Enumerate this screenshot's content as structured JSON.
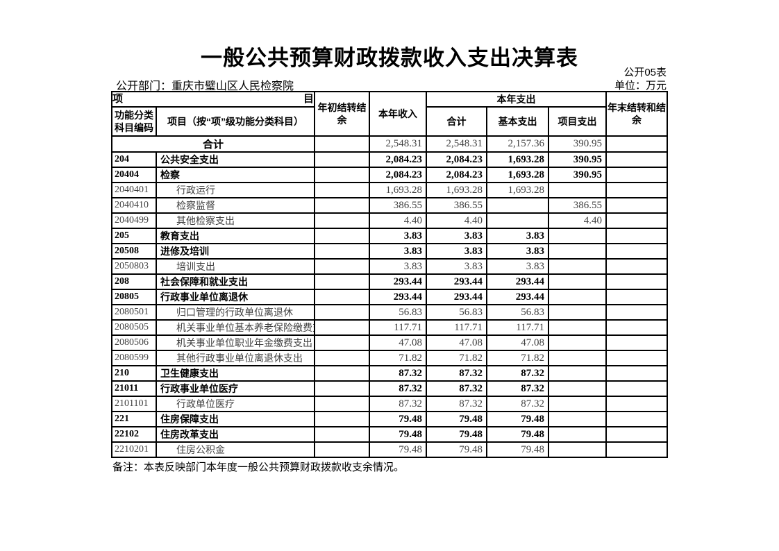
{
  "page": {
    "title": "一般公共预算财政拨款收入支出决算表",
    "table_code": "公开05表",
    "department": "公开部门：重庆市璧山区人民检察院",
    "unit": "单位：万元",
    "note": "备注：本表反映部门本年度一般公共预算财政拨款收支余情况。"
  },
  "table": {
    "header": {
      "item_left": "项",
      "item_right": "目",
      "code_col": "功能分类科目编码",
      "project_col": "项目（按“项”级功能分类科目）",
      "opening_balance": "年初结转结余",
      "income": "本年收入",
      "expenditure_group": "本年支出",
      "exp_total": "合计",
      "exp_basic": "基本支出",
      "exp_project": "项目支出",
      "closing_balance": "年末结转和结余"
    },
    "rows": [
      {
        "level": "total",
        "code": "",
        "name": "合计",
        "opening": "",
        "income": "2,548.31",
        "exp_total": "2,548.31",
        "exp_basic": "2,157.36",
        "exp_project": "390.95",
        "closing": ""
      },
      {
        "level": "major",
        "code": "204",
        "name": "公共安全支出",
        "opening": "",
        "income": "2,084.23",
        "exp_total": "2,084.23",
        "exp_basic": "1,693.28",
        "exp_project": "390.95",
        "closing": ""
      },
      {
        "level": "major",
        "code": "20404",
        "name": "检察",
        "opening": "",
        "income": "2,084.23",
        "exp_total": "2,084.23",
        "exp_basic": "1,693.28",
        "exp_project": "390.95",
        "closing": ""
      },
      {
        "level": "detail",
        "code": "2040401",
        "name": "行政运行",
        "opening": "",
        "income": "1,693.28",
        "exp_total": "1,693.28",
        "exp_basic": "1,693.28",
        "exp_project": "",
        "closing": ""
      },
      {
        "level": "detail",
        "code": "2040410",
        "name": "检察监督",
        "opening": "",
        "income": "386.55",
        "exp_total": "386.55",
        "exp_basic": "",
        "exp_project": "386.55",
        "closing": ""
      },
      {
        "level": "detail",
        "code": "2040499",
        "name": "其他检察支出",
        "opening": "",
        "income": "4.40",
        "exp_total": "4.40",
        "exp_basic": "",
        "exp_project": "4.40",
        "closing": ""
      },
      {
        "level": "major",
        "code": "205",
        "name": "教育支出",
        "opening": "",
        "income": "3.83",
        "exp_total": "3.83",
        "exp_basic": "3.83",
        "exp_project": "",
        "closing": ""
      },
      {
        "level": "major",
        "code": "20508",
        "name": "进修及培训",
        "opening": "",
        "income": "3.83",
        "exp_total": "3.83",
        "exp_basic": "3.83",
        "exp_project": "",
        "closing": ""
      },
      {
        "level": "detail",
        "code": "2050803",
        "name": "培训支出",
        "opening": "",
        "income": "3.83",
        "exp_total": "3.83",
        "exp_basic": "3.83",
        "exp_project": "",
        "closing": ""
      },
      {
        "level": "major",
        "code": "208",
        "name": "社会保障和就业支出",
        "opening": "",
        "income": "293.44",
        "exp_total": "293.44",
        "exp_basic": "293.44",
        "exp_project": "",
        "closing": ""
      },
      {
        "level": "major",
        "code": "20805",
        "name": "行政事业单位离退休",
        "opening": "",
        "income": "293.44",
        "exp_total": "293.44",
        "exp_basic": "293.44",
        "exp_project": "",
        "closing": ""
      },
      {
        "level": "detail",
        "code": "2080501",
        "name": "归口管理的行政单位离退休",
        "opening": "",
        "income": "56.83",
        "exp_total": "56.83",
        "exp_basic": "56.83",
        "exp_project": "",
        "closing": ""
      },
      {
        "level": "detail",
        "code": "2080505",
        "name": "机关事业单位基本养老保险缴费支出",
        "opening": "",
        "income": "117.71",
        "exp_total": "117.71",
        "exp_basic": "117.71",
        "exp_project": "",
        "closing": ""
      },
      {
        "level": "detail",
        "code": "2080506",
        "name": "机关事业单位职业年金缴费支出",
        "opening": "",
        "income": "47.08",
        "exp_total": "47.08",
        "exp_basic": "47.08",
        "exp_project": "",
        "closing": ""
      },
      {
        "level": "detail",
        "code": "2080599",
        "name": "其他行政事业单位离退休支出",
        "opening": "",
        "income": "71.82",
        "exp_total": "71.82",
        "exp_basic": "71.82",
        "exp_project": "",
        "closing": ""
      },
      {
        "level": "major",
        "code": "210",
        "name": "卫生健康支出",
        "opening": "",
        "income": "87.32",
        "exp_total": "87.32",
        "exp_basic": "87.32",
        "exp_project": "",
        "closing": ""
      },
      {
        "level": "major",
        "code": "21011",
        "name": "行政事业单位医疗",
        "opening": "",
        "income": "87.32",
        "exp_total": "87.32",
        "exp_basic": "87.32",
        "exp_project": "",
        "closing": ""
      },
      {
        "level": "detail",
        "code": "2101101",
        "name": "行政单位医疗",
        "opening": "",
        "income": "87.32",
        "exp_total": "87.32",
        "exp_basic": "87.32",
        "exp_project": "",
        "closing": ""
      },
      {
        "level": "major",
        "code": "221",
        "name": "住房保障支出",
        "opening": "",
        "income": "79.48",
        "exp_total": "79.48",
        "exp_basic": "79.48",
        "exp_project": "",
        "closing": ""
      },
      {
        "level": "major",
        "code": "22102",
        "name": "住房改革支出",
        "opening": "",
        "income": "79.48",
        "exp_total": "79.48",
        "exp_basic": "79.48",
        "exp_project": "",
        "closing": ""
      },
      {
        "level": "detail",
        "code": "2210201",
        "name": "住房公积金",
        "opening": "",
        "income": "79.48",
        "exp_total": "79.48",
        "exp_basic": "79.48",
        "exp_project": "",
        "closing": ""
      }
    ]
  }
}
